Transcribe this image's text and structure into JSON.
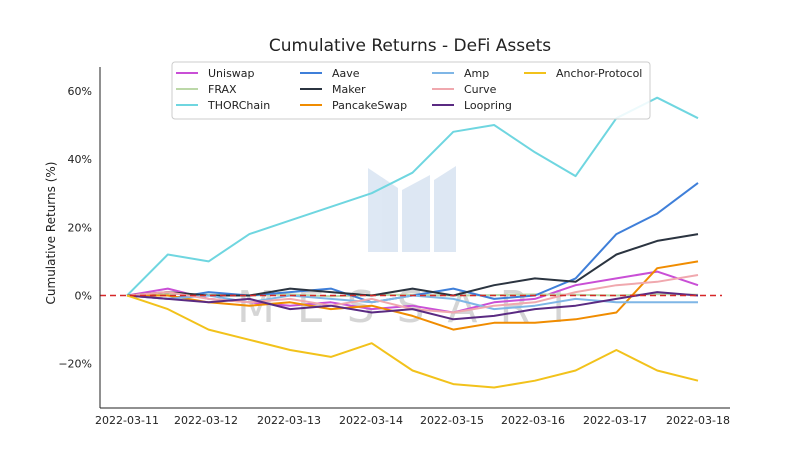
{
  "chart_data": {
    "type": "line",
    "title": "Cumulative Returns - DeFi Assets",
    "xlabel": "",
    "ylabel": "Cumulative Returns (%)",
    "x": [
      "2022-03-11",
      "2022-03-11 12:00",
      "2022-03-12",
      "2022-03-12 12:00",
      "2022-03-13",
      "2022-03-13 12:00",
      "2022-03-14",
      "2022-03-14 12:00",
      "2022-03-15",
      "2022-03-15 12:00",
      "2022-03-16",
      "2022-03-16 12:00",
      "2022-03-17",
      "2022-03-17 12:00",
      "2022-03-18"
    ],
    "xticks": [
      "2022-03-11",
      "2022-03-12",
      "2022-03-13",
      "2022-03-14",
      "2022-03-15",
      "2022-03-16",
      "2022-03-17",
      "2022-03-18"
    ],
    "ylim": [
      -33,
      67
    ],
    "yticks": [
      -20,
      0,
      20,
      40,
      60
    ],
    "ytick_labels": [
      "−20%",
      "0%",
      "20%",
      "40%",
      "60%"
    ],
    "grid": false,
    "legend_position": "top",
    "reference_line": {
      "y": 0,
      "color": "#d62728",
      "style": "dashed"
    },
    "watermark": "MESSARI",
    "series": [
      {
        "name": "Uniswap",
        "color": "#c94fd6",
        "values": [
          0,
          2,
          -1,
          -2,
          -3,
          -2,
          -4,
          -3,
          -5,
          -2,
          -1,
          3,
          5,
          7,
          3
        ]
      },
      {
        "name": "FRAX",
        "color": "#bcd8a8",
        "values": [
          0,
          0.5,
          0.2,
          0,
          0.3,
          -0.2,
          0.1,
          0.2,
          0,
          0.1,
          0.3,
          0.2,
          0,
          0.4,
          0.2
        ]
      },
      {
        "name": "THORChain",
        "color": "#6fd6e0",
        "values": [
          0,
          12,
          10,
          18,
          22,
          26,
          30,
          36,
          48,
          50,
          42,
          35,
          52,
          58,
          52
        ]
      },
      {
        "name": "Aave",
        "color": "#3f7fd9",
        "values": [
          0,
          -1,
          1,
          0,
          1,
          2,
          -2,
          0,
          2,
          -1,
          0,
          5,
          18,
          24,
          33
        ]
      },
      {
        "name": "Maker",
        "color": "#2b3440",
        "values": [
          0,
          1,
          0,
          0,
          2,
          1,
          0,
          2,
          0,
          3,
          5,
          4,
          12,
          16,
          18
        ]
      },
      {
        "name": "PancakeSwap",
        "color": "#f08c00",
        "values": [
          0,
          0,
          -2,
          -3,
          -2,
          -4,
          -3,
          -6,
          -10,
          -8,
          -8,
          -7,
          -5,
          8,
          10
        ]
      },
      {
        "name": "Amp",
        "color": "#7fb6e6",
        "values": [
          0,
          -1,
          0,
          -2,
          0,
          -1,
          -2,
          0,
          -1,
          -4,
          -3,
          -1,
          -2,
          -2,
          -2
        ]
      },
      {
        "name": "Curve",
        "color": "#f0a8ae",
        "values": [
          0,
          1,
          -1,
          -2,
          -1,
          -3,
          -1,
          -4,
          -5,
          -3,
          -2,
          1,
          3,
          4,
          6
        ]
      },
      {
        "name": "Loopring",
        "color": "#5a2a82",
        "values": [
          0,
          -1,
          -2,
          -1,
          -4,
          -3,
          -5,
          -4,
          -7,
          -6,
          -4,
          -3,
          -1,
          1,
          0
        ]
      },
      {
        "name": "Anchor-Protocol",
        "color": "#f2c21b",
        "values": [
          0,
          -4,
          -10,
          -13,
          -16,
          -18,
          -14,
          -22,
          -26,
          -27,
          -25,
          -22,
          -16,
          -22,
          -25
        ]
      }
    ]
  }
}
